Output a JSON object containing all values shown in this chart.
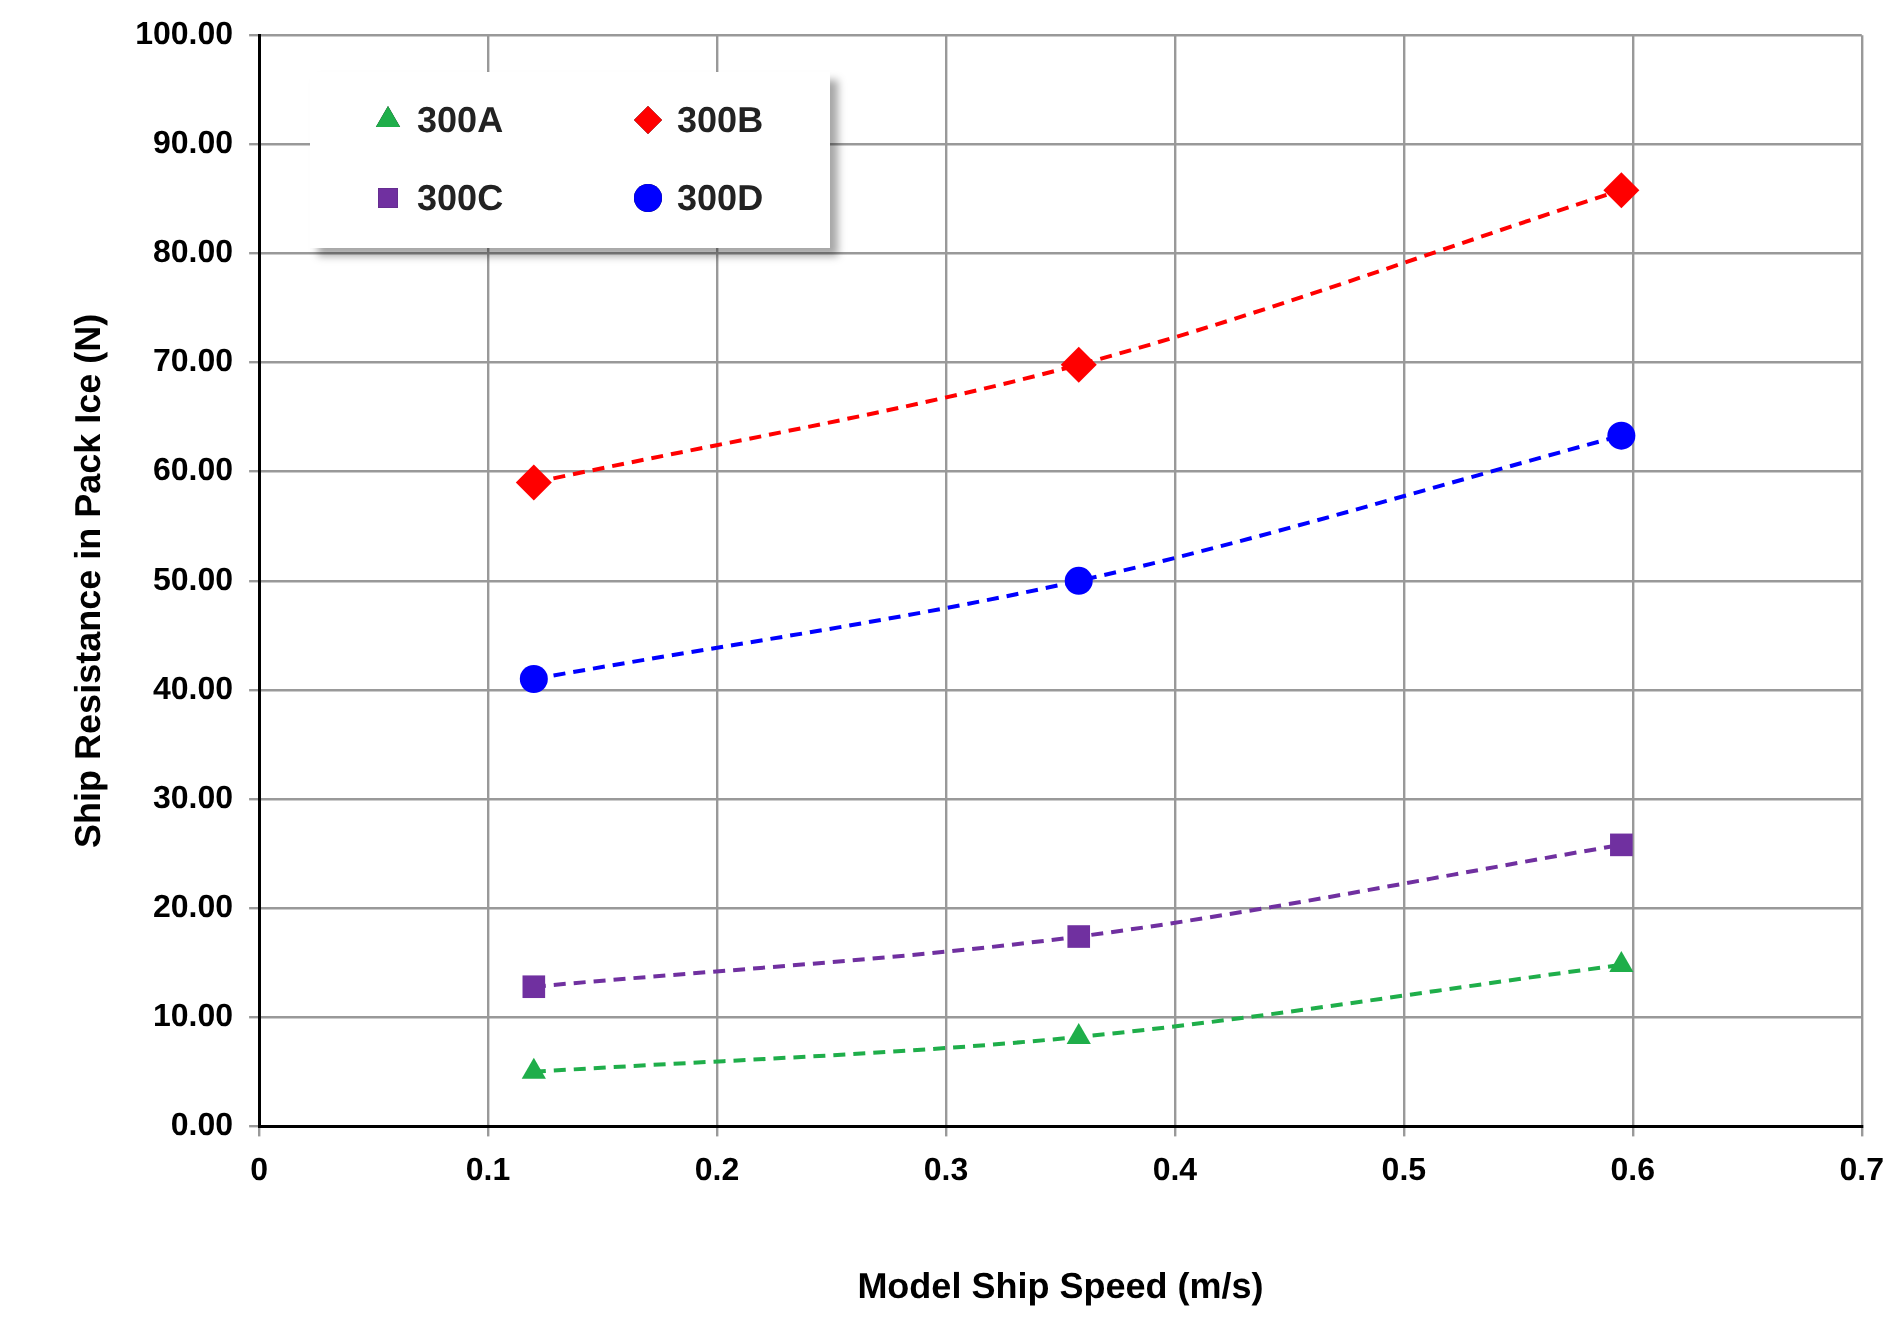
{
  "chart_data": {
    "type": "line",
    "xlabel": "Model Ship Speed (m/s)",
    "ylabel": "Ship Resistance in Pack Ice (N)",
    "x": [
      0.12,
      0.358,
      0.595
    ],
    "series": [
      {
        "name": "300A",
        "color": "#1fae4a",
        "marker": "triangle",
        "values": [
          5.0,
          8.2,
          14.8
        ]
      },
      {
        "name": "300B",
        "color": "#ff0000",
        "marker": "diamond",
        "values": [
          59.0,
          69.8,
          85.8
        ]
      },
      {
        "name": "300C",
        "color": "#7030a0",
        "marker": "square",
        "values": [
          12.8,
          17.4,
          25.8
        ]
      },
      {
        "name": "300D",
        "color": "#0000ff",
        "marker": "circle",
        "values": [
          41.0,
          50.0,
          63.3
        ]
      }
    ],
    "line_style": "dashed",
    "legend": "top left",
    "grid": true,
    "xlim": [
      0,
      0.7
    ],
    "xticks": [
      0,
      0.1,
      0.2,
      0.3,
      0.4,
      0.5,
      0.6,
      0.7
    ],
    "ylim": [
      0,
      100
    ],
    "yticks": [
      {
        "value": 0,
        "label": "0.00"
      },
      {
        "value": 10,
        "label": "10.00"
      },
      {
        "value": 20,
        "label": "20.00"
      },
      {
        "value": 30,
        "label": "30.00"
      },
      {
        "value": 40,
        "label": "40.00"
      },
      {
        "value": 50,
        "label": "50.00"
      },
      {
        "value": 60,
        "label": "60.00"
      },
      {
        "value": 70,
        "label": "70.00"
      },
      {
        "value": 80,
        "label": "80.00"
      },
      {
        "value": 90,
        "label": "90.00"
      },
      {
        "value": 100,
        "label": "100.00"
      }
    ]
  }
}
